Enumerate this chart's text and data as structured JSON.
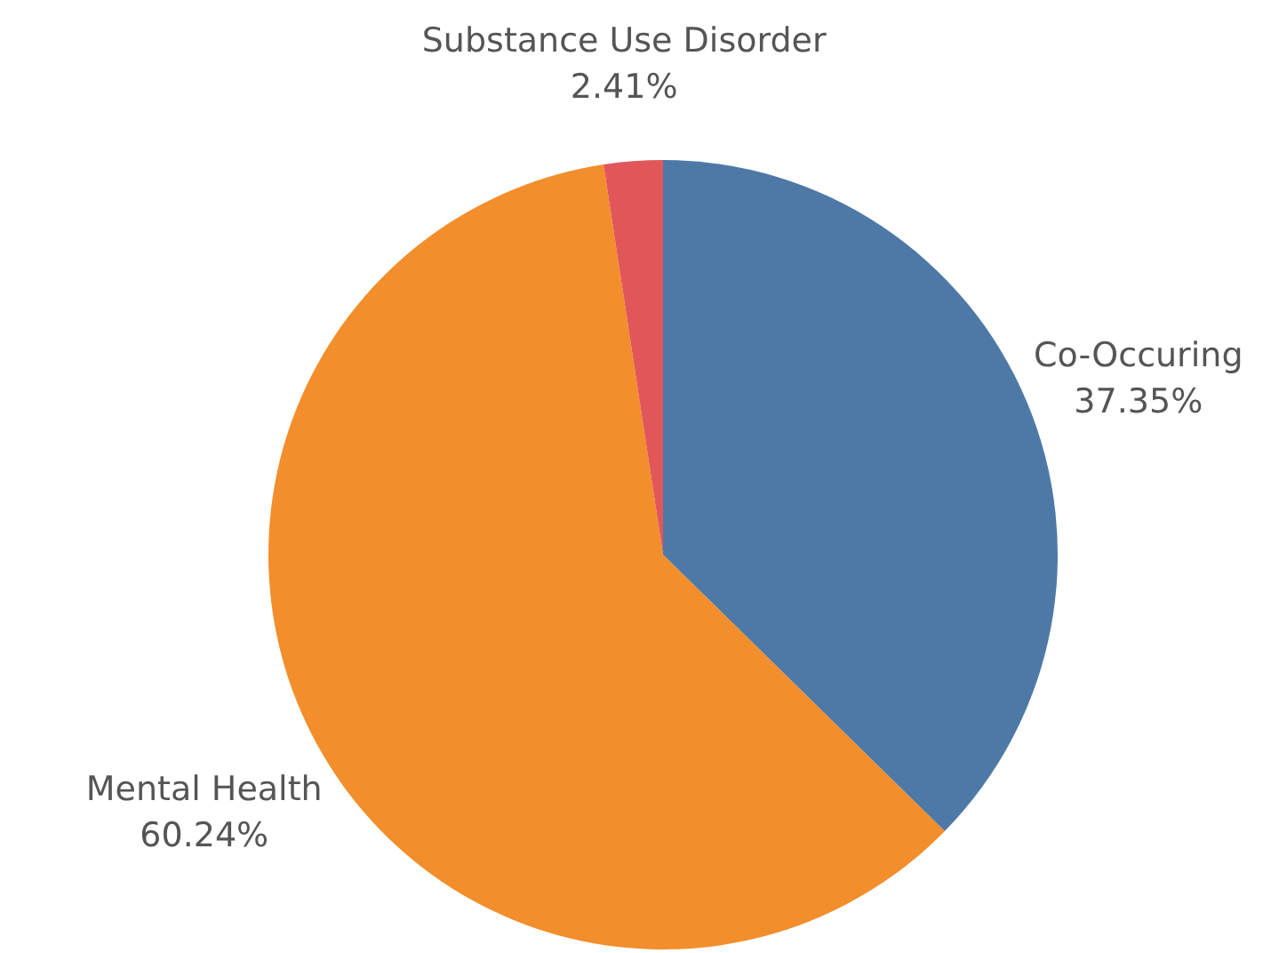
{
  "chart_data": {
    "type": "pie",
    "categories": [
      "Co-Occuring",
      "Mental Health",
      "Substance Use Disorder"
    ],
    "values": [
      37.35,
      60.24,
      2.41
    ],
    "colors": [
      "#4e79a7",
      "#f28e2b",
      "#e15759"
    ],
    "value_labels": [
      "37.35%",
      "60.24%",
      "2.41%"
    ]
  }
}
